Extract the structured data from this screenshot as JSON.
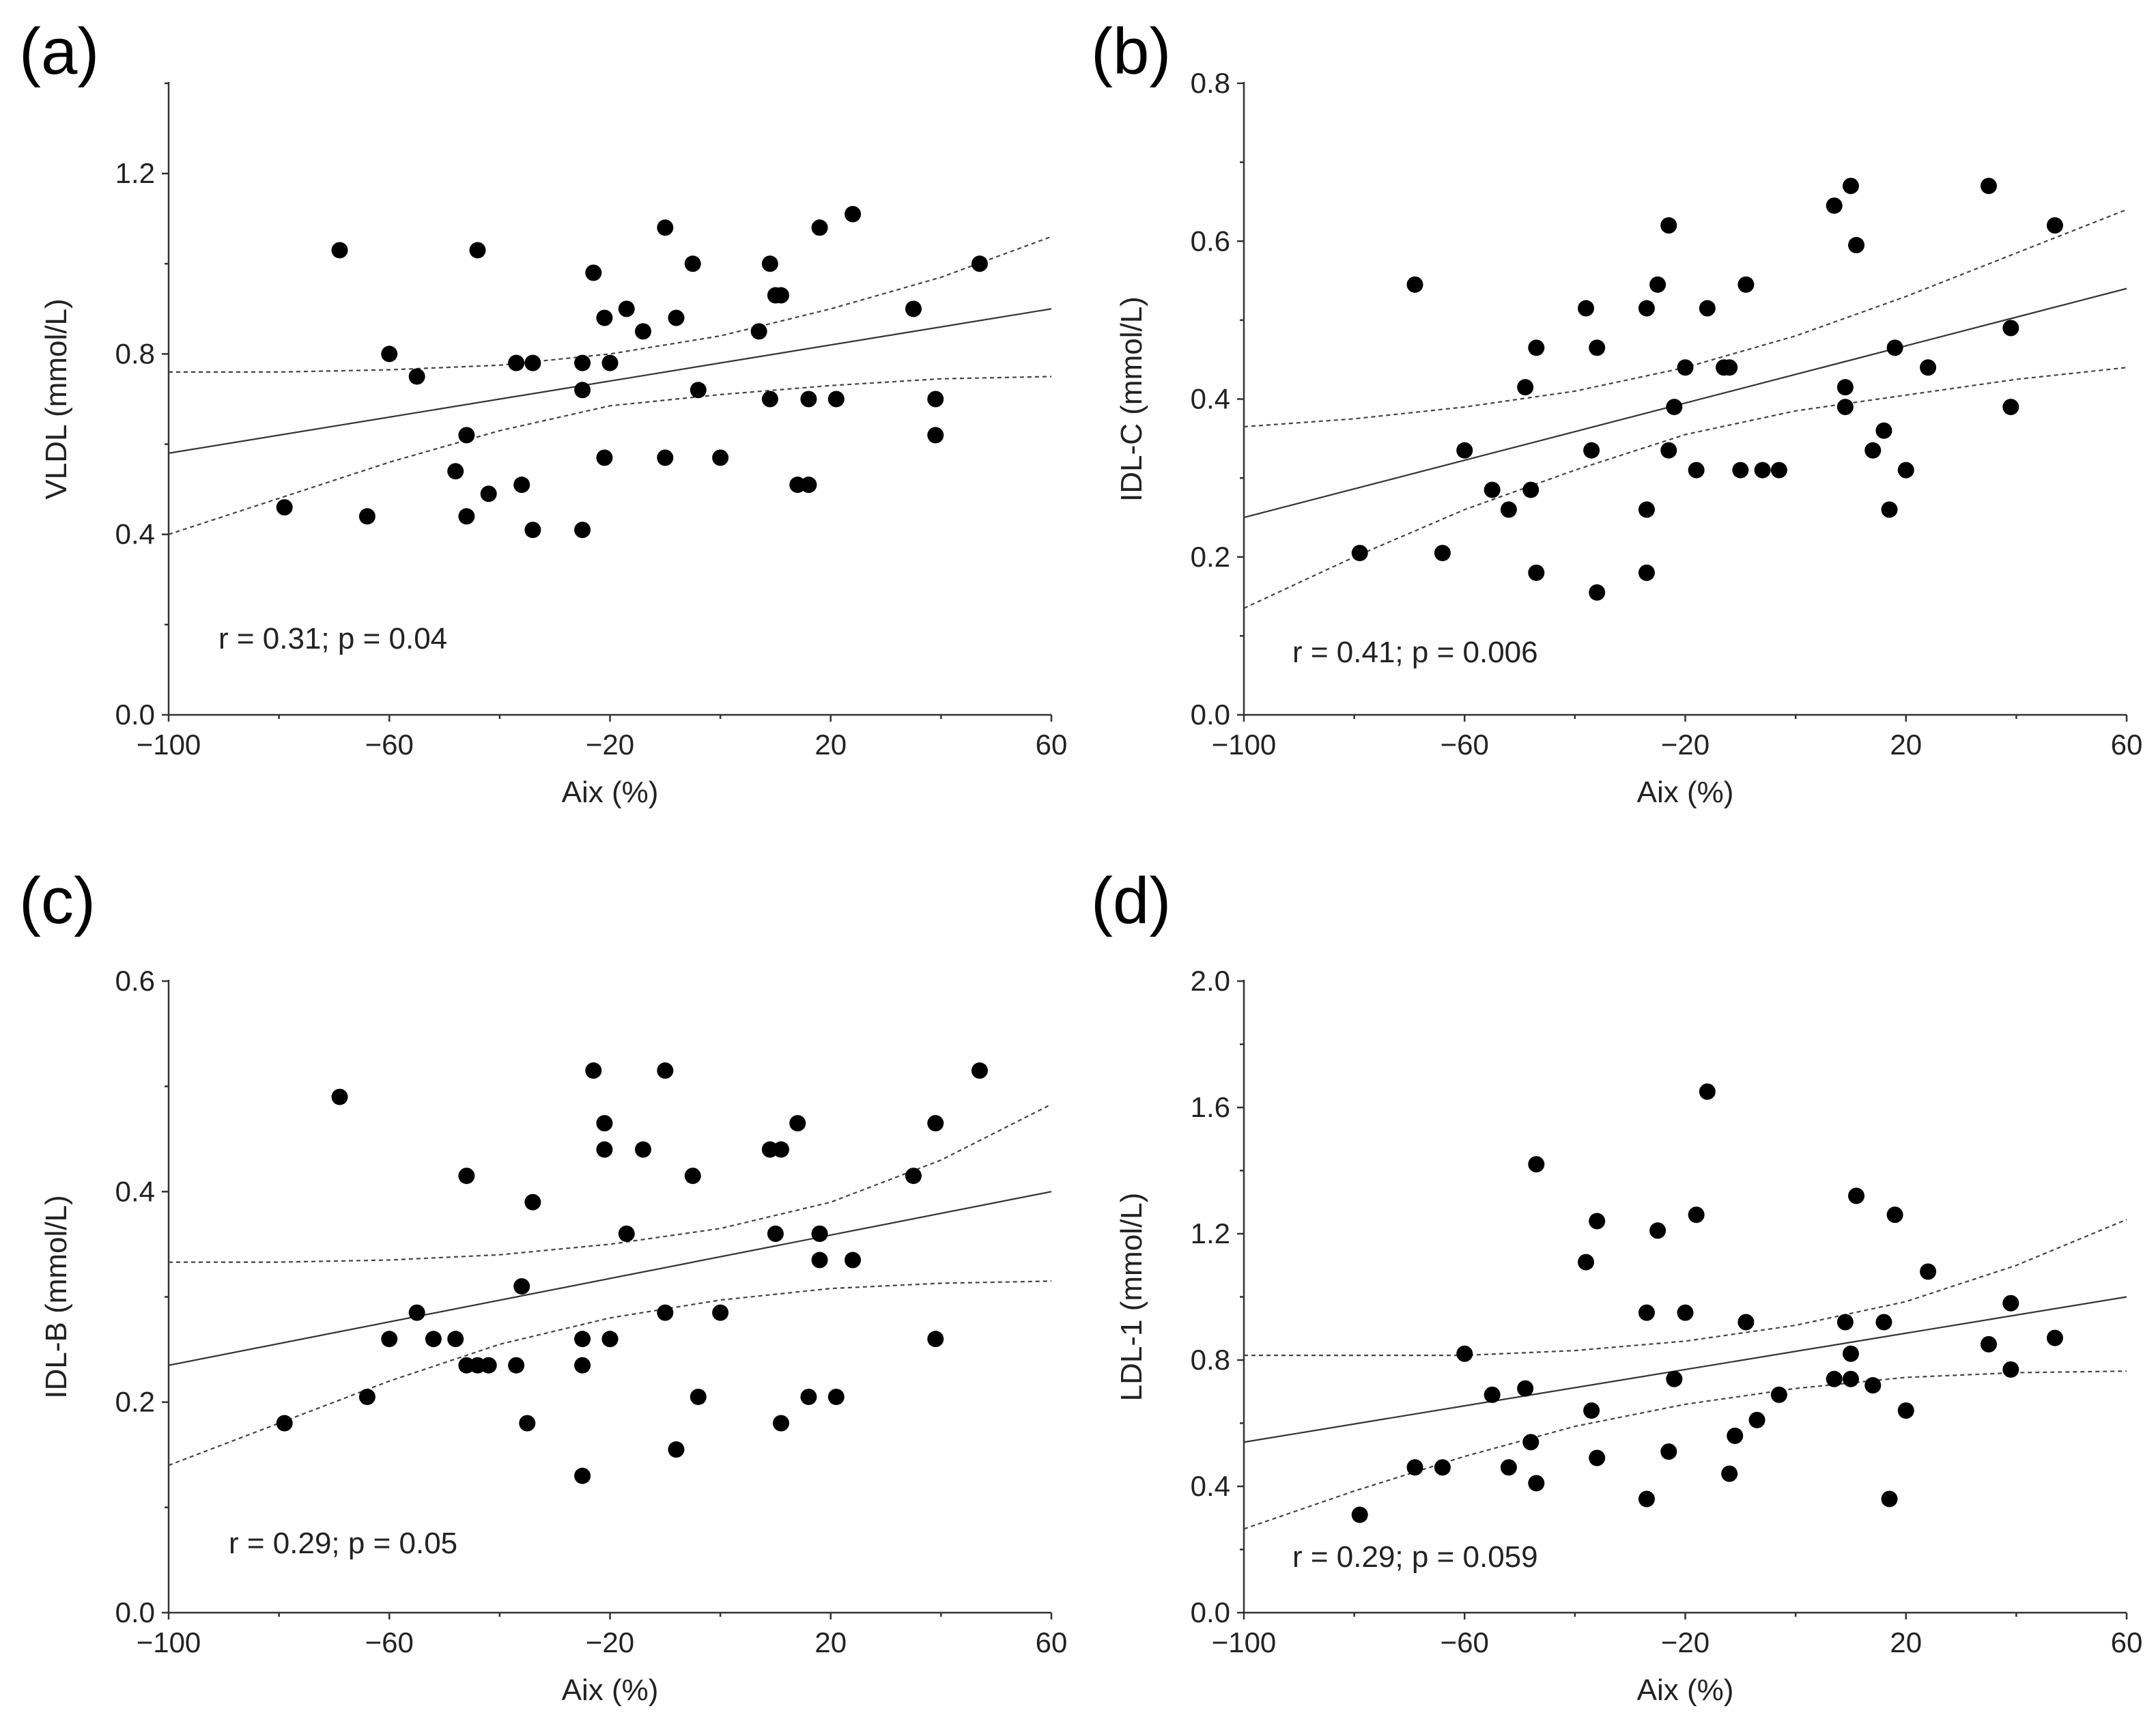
{
  "chart_data": [
    {
      "type": "scatter",
      "panel_label": "(a)",
      "xlabel": "Aix (%)",
      "ylabel": "VLDL (mmol/L)",
      "xlim": [
        -100,
        60
      ],
      "ylim": [
        0,
        1.4
      ],
      "xticks": [
        -100,
        -60,
        -20,
        20,
        60
      ],
      "xtick_labels": [
        "−100",
        "−60",
        "−20",
        "20",
        "60"
      ],
      "yticks": [
        0,
        0.4,
        0.8,
        1.2
      ],
      "ytick_labels": [
        "0.0",
        "0.4",
        "0.8",
        "1.2"
      ],
      "annotation": "r = 0.31; p = 0.04",
      "fit": {
        "x": [
          -100,
          60
        ],
        "y": [
          0.58,
          0.9
        ]
      },
      "ci_upper": {
        "x": [
          -100,
          -80,
          -60,
          -40,
          -20,
          0,
          20,
          40,
          60
        ],
        "y": [
          0.76,
          0.76,
          0.765,
          0.775,
          0.8,
          0.84,
          0.9,
          0.97,
          1.06
        ]
      },
      "ci_lower": {
        "x": [
          -100,
          -80,
          -60,
          -40,
          -20,
          0,
          20,
          40,
          60
        ],
        "y": [
          0.4,
          0.48,
          0.56,
          0.63,
          0.685,
          0.71,
          0.73,
          0.745,
          0.75
        ]
      },
      "x": [
        -79,
        -69,
        -64,
        -60,
        -55,
        -46,
        -44,
        -48,
        -46,
        -42,
        -37,
        -36,
        -34,
        -34,
        -25,
        -25,
        -23,
        -21,
        -21,
        -20,
        -25,
        -17,
        -14,
        -10,
        -10,
        -8,
        -5,
        -4,
        0,
        7,
        9,
        9,
        10,
        11,
        14,
        16,
        16,
        18,
        21,
        24,
        35,
        39,
        39,
        47
      ],
      "y": [
        0.46,
        1.03,
        0.44,
        0.8,
        0.75,
        0.62,
        1.03,
        0.54,
        0.44,
        0.49,
        0.78,
        0.51,
        0.41,
        0.78,
        0.78,
        0.72,
        0.98,
        0.88,
        0.57,
        0.78,
        0.41,
        0.9,
        0.85,
        1.08,
        0.57,
        0.88,
        1.0,
        0.72,
        0.57,
        0.85,
        1.0,
        0.7,
        0.93,
        0.93,
        0.51,
        0.7,
        0.51,
        1.08,
        0.7,
        1.11,
        0.9,
        0.7,
        0.62,
        1.0
      ]
    },
    {
      "type": "scatter",
      "panel_label": "(b)",
      "xlabel": "Aix (%)",
      "ylabel": "IDL-C (mmol/L)",
      "xlim": [
        -100,
        60
      ],
      "ylim": [
        0,
        0.8
      ],
      "xticks": [
        -100,
        -60,
        -20,
        20,
        60
      ],
      "xtick_labels": [
        "−100",
        "−60",
        "−20",
        "20",
        "60"
      ],
      "yticks": [
        0,
        0.2,
        0.4,
        0.6,
        0.8
      ],
      "ytick_labels": [
        "0.0",
        "0.2",
        "0.4",
        "0.6",
        "0.8"
      ],
      "annotation": "r = 0.41; p = 0.006",
      "fit": {
        "x": [
          -100,
          60
        ],
        "y": [
          0.25,
          0.54
        ]
      },
      "ci_upper": {
        "x": [
          -100,
          -80,
          -60,
          -40,
          -20,
          0,
          20,
          40,
          60
        ],
        "y": [
          0.365,
          0.375,
          0.39,
          0.41,
          0.44,
          0.48,
          0.53,
          0.585,
          0.64
        ]
      },
      "ci_lower": {
        "x": [
          -100,
          -80,
          -60,
          -40,
          -20,
          0,
          20,
          40,
          60
        ],
        "y": [
          0.135,
          0.2,
          0.26,
          0.31,
          0.355,
          0.385,
          0.405,
          0.425,
          0.44
        ]
      },
      "x": [
        -79,
        -69,
        -64,
        -60,
        -55,
        -52,
        -49,
        -48,
        -47,
        -47,
        -38,
        -37,
        -36,
        -36,
        -27,
        -27,
        -27,
        -25,
        -23,
        -23,
        -22,
        -20,
        -18,
        -16,
        -13,
        -12,
        -10,
        -9,
        -6,
        -3,
        7,
        9,
        9,
        10,
        11,
        14,
        16,
        17,
        18,
        20,
        24,
        35,
        39,
        39,
        47
      ],
      "y": [
        0.205,
        0.545,
        0.205,
        0.335,
        0.285,
        0.26,
        0.415,
        0.285,
        0.465,
        0.18,
        0.515,
        0.335,
        0.155,
        0.465,
        0.515,
        0.26,
        0.18,
        0.545,
        0.335,
        0.62,
        0.39,
        0.44,
        0.31,
        0.515,
        0.44,
        0.44,
        0.31,
        0.545,
        0.31,
        0.31,
        0.645,
        0.415,
        0.39,
        0.67,
        0.595,
        0.335,
        0.36,
        0.26,
        0.465,
        0.31,
        0.44,
        0.67,
        0.39,
        0.49,
        0.62
      ]
    },
    {
      "type": "scatter",
      "panel_label": "(c)",
      "xlabel": "Aix (%)",
      "ylabel": "IDL-B (mmol/L)",
      "xlim": [
        -100,
        60
      ],
      "ylim": [
        0,
        0.6
      ],
      "xticks": [
        -100,
        -60,
        -20,
        20,
        60
      ],
      "xtick_labels": [
        "−100",
        "−60",
        "−20",
        "20",
        "60"
      ],
      "yticks": [
        0,
        0.2,
        0.4,
        0.6
      ],
      "ytick_labels": [
        "0.0",
        "0.2",
        "0.4",
        "0.6"
      ],
      "annotation": "r = 0.29; p = 0.05",
      "fit": {
        "x": [
          -100,
          60
        ],
        "y": [
          0.235,
          0.4
        ]
      },
      "ci_upper": {
        "x": [
          -100,
          -80,
          -60,
          -40,
          -20,
          0,
          20,
          40,
          60
        ],
        "y": [
          0.333,
          0.333,
          0.335,
          0.34,
          0.35,
          0.365,
          0.39,
          0.43,
          0.483
        ]
      },
      "ci_lower": {
        "x": [
          -100,
          -80,
          -60,
          -40,
          -20,
          0,
          20,
          40,
          60
        ],
        "y": [
          0.14,
          0.18,
          0.22,
          0.255,
          0.28,
          0.297,
          0.308,
          0.313,
          0.315
        ]
      },
      "x": [
        -79,
        -69,
        -64,
        -60,
        -55,
        -52,
        -48,
        -46,
        -46,
        -44,
        -42,
        -37,
        -36,
        -35,
        -34,
        -25,
        -25,
        -25,
        -23,
        -21,
        -21,
        -20,
        -20,
        -17,
        -14,
        -10,
        -10,
        -8,
        -5,
        -4,
        0,
        9,
        10,
        11,
        11,
        14,
        16,
        18,
        18,
        18,
        21,
        24,
        35,
        39,
        39,
        47
      ],
      "y": [
        0.18,
        0.49,
        0.205,
        0.26,
        0.285,
        0.26,
        0.26,
        0.235,
        0.415,
        0.235,
        0.235,
        0.235,
        0.31,
        0.18,
        0.39,
        0.26,
        0.235,
        0.13,
        0.515,
        0.465,
        0.44,
        0.26,
        0.26,
        0.36,
        0.44,
        0.515,
        0.285,
        0.155,
        0.415,
        0.205,
        0.285,
        0.44,
        0.36,
        0.44,
        0.18,
        0.465,
        0.205,
        0.36,
        0.335,
        0.36,
        0.205,
        0.335,
        0.415,
        0.465,
        0.26,
        0.515
      ]
    },
    {
      "type": "scatter",
      "panel_label": "(d)",
      "xlabel": "Aix (%)",
      "ylabel": "LDL-1 (mmol/L)",
      "xlim": [
        -100,
        60
      ],
      "ylim": [
        0,
        2.0
      ],
      "xticks": [
        -100,
        -60,
        -20,
        20,
        60
      ],
      "xtick_labels": [
        "−100",
        "−60",
        "−20",
        "20",
        "60"
      ],
      "yticks": [
        0,
        0.4,
        0.8,
        1.2,
        1.6,
        2.0
      ],
      "ytick_labels": [
        "0.0",
        "0.4",
        "0.8",
        "1.2",
        "1.6",
        "2.0"
      ],
      "annotation": "r = 0.29; p = 0.059",
      "fit": {
        "x": [
          -100,
          60
        ],
        "y": [
          0.54,
          1.0
        ]
      },
      "ci_upper": {
        "x": [
          -100,
          -80,
          -60,
          -40,
          -20,
          0,
          20,
          40,
          60
        ],
        "y": [
          0.815,
          0.815,
          0.815,
          0.83,
          0.86,
          0.91,
          0.985,
          1.1,
          1.245
        ]
      },
      "ci_lower": {
        "x": [
          -100,
          -80,
          -60,
          -40,
          -20,
          0,
          20,
          40,
          60
        ],
        "y": [
          0.265,
          0.385,
          0.495,
          0.59,
          0.66,
          0.71,
          0.745,
          0.76,
          0.765
        ]
      },
      "x": [
        -79,
        -69,
        -64,
        -60,
        -55,
        -52,
        -49,
        -48,
        -47,
        -47,
        -38,
        -37,
        -36,
        -36,
        -27,
        -27,
        -25,
        -23,
        -22,
        -20,
        -18,
        -16,
        -12,
        -11,
        -9,
        -7,
        -3,
        7,
        9,
        10,
        10,
        11,
        14,
        16,
        17,
        18,
        20,
        24,
        35,
        39,
        39,
        47
      ],
      "y": [
        0.31,
        0.46,
        0.46,
        0.82,
        0.69,
        0.46,
        0.71,
        0.54,
        1.42,
        0.41,
        1.11,
        0.64,
        0.49,
        1.24,
        0.95,
        0.36,
        1.21,
        0.51,
        0.74,
        0.95,
        1.26,
        1.65,
        0.44,
        0.56,
        0.92,
        0.61,
        0.69,
        0.74,
        0.92,
        0.74,
        0.82,
        1.32,
        0.72,
        0.92,
        0.36,
        1.26,
        0.64,
        1.08,
        0.85,
        0.77,
        0.98,
        0.87
      ]
    }
  ]
}
